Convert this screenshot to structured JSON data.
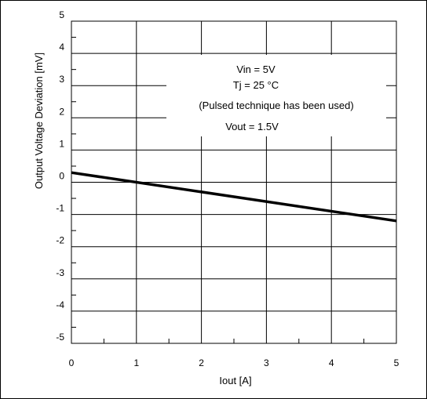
{
  "chart_data": {
    "type": "line",
    "title": "",
    "xlabel": "Iout [A]",
    "ylabel": "Output Voltage Deviation [mV]",
    "xlim": [
      0,
      5
    ],
    "ylim": [
      -5,
      5
    ],
    "x_ticks": [
      "0",
      "1",
      "2",
      "3",
      "4",
      "5"
    ],
    "y_ticks": [
      "5",
      "4",
      "3",
      "2",
      "1",
      "0",
      "-1",
      "-2",
      "-3",
      "-4",
      "-5"
    ],
    "grid": true,
    "series": [
      {
        "x": [
          0,
          5
        ],
        "y": [
          0.3,
          -1.2
        ],
        "color": "#000000"
      }
    ],
    "annotations": [
      "Vin = 5V",
      "Tj = 25 °C",
      "(Pulsed technique has been used)",
      "Vout = 1.5V"
    ]
  }
}
